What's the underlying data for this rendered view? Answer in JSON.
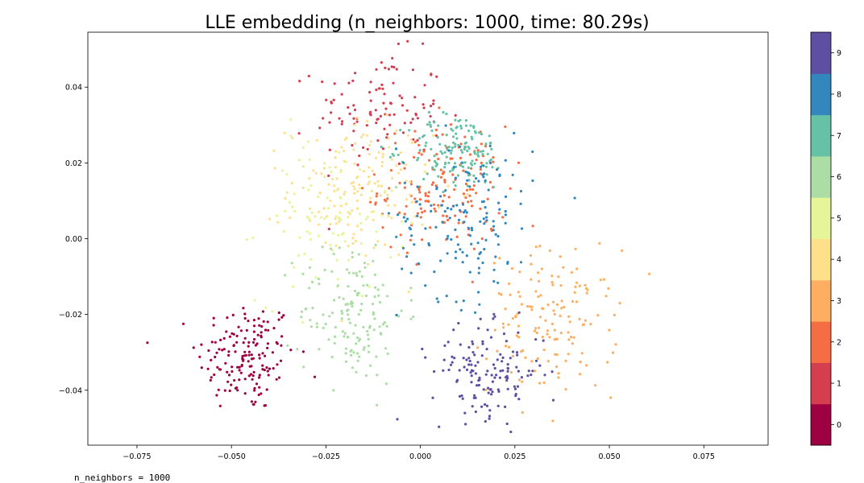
{
  "chart_data": {
    "type": "scatter",
    "title": "LLE embedding (n_neighbors: 1000, time: 80.29s)",
    "xlabel": "",
    "ylabel": "",
    "xlim": [
      -0.088,
      0.092
    ],
    "ylim": [
      -0.0545,
      0.0545
    ],
    "xticks": [
      -0.075,
      -0.05,
      -0.025,
      0.0,
      0.025,
      0.05,
      0.075
    ],
    "xtick_labels": [
      "−0.075",
      "−0.050",
      "−0.025",
      "0.000",
      "0.025",
      "0.050",
      "0.075"
    ],
    "yticks": [
      -0.04,
      -0.02,
      0.0,
      0.02,
      0.04
    ],
    "ytick_labels": [
      "−0.04",
      "−0.02",
      "0.00",
      "0.02",
      "0.04"
    ],
    "grid": false,
    "colormap": "Spectral",
    "colorbar": {
      "ticks": [
        0,
        1,
        2,
        3,
        4,
        5,
        6,
        7,
        8,
        9
      ],
      "tick_labels": [
        "0",
        "1",
        "2",
        "3",
        "4",
        "5",
        "6",
        "7",
        "8",
        "9"
      ],
      "colors": [
        "#9e0142",
        "#d53e4f",
        "#f46d43",
        "#fdae61",
        "#fee08b",
        "#e6f598",
        "#abdda4",
        "#66c2a5",
        "#3288bd",
        "#5e4fa2"
      ]
    },
    "clusters": [
      {
        "label": 0,
        "cx": -0.046,
        "cy": -0.031,
        "sx": 0.0065,
        "sy": 0.0075,
        "n": 160
      },
      {
        "label": 1,
        "cx": -0.011,
        "cy": 0.034,
        "sx": 0.0085,
        "sy": 0.0075,
        "n": 110
      },
      {
        "label": 2,
        "cx": 0.006,
        "cy": 0.013,
        "sx": 0.0085,
        "sy": 0.0085,
        "n": 160
      },
      {
        "label": 3,
        "cx": 0.035,
        "cy": -0.022,
        "sx": 0.0085,
        "sy": 0.0095,
        "n": 150
      },
      {
        "label": 4,
        "cx": -0.016,
        "cy": 0.013,
        "sx": 0.0095,
        "sy": 0.009,
        "n": 150
      },
      {
        "label": 5,
        "cx": -0.025,
        "cy": 0.005,
        "sx": 0.009,
        "sy": 0.011,
        "n": 90
      },
      {
        "label": 6,
        "cx": -0.018,
        "cy": -0.019,
        "sx": 0.007,
        "sy": 0.0095,
        "n": 150
      },
      {
        "label": 7,
        "cx": 0.01,
        "cy": 0.023,
        "sx": 0.0065,
        "sy": 0.005,
        "n": 140
      },
      {
        "label": 8,
        "cx": 0.012,
        "cy": 0.006,
        "sx": 0.009,
        "sy": 0.011,
        "n": 150
      },
      {
        "label": 9,
        "cx": 0.018,
        "cy": -0.035,
        "sx": 0.0075,
        "sy": 0.006,
        "n": 140
      }
    ]
  },
  "footer_text": "n_neighbors = 1000"
}
